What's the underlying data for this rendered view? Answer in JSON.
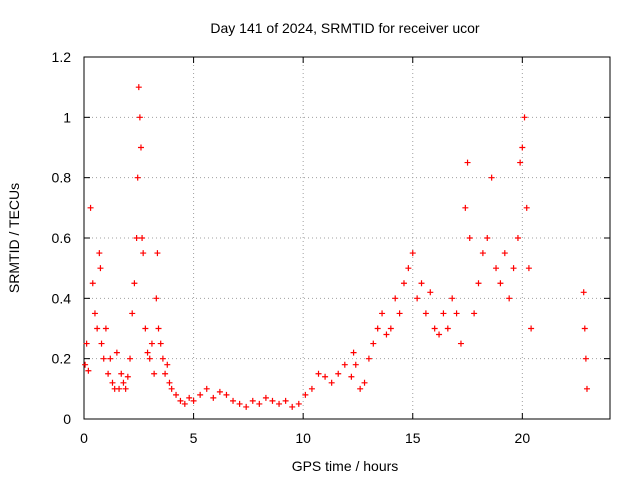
{
  "chart_data": {
    "type": "scatter",
    "title": "Day 141 of 2024, SRMTID for receiver ucor",
    "xlabel": "GPS time / hours",
    "ylabel": "SRMTID / TECUs",
    "xlim": [
      0,
      24
    ],
    "ylim": [
      0,
      1.2
    ],
    "x_ticks": [
      0,
      5,
      10,
      15,
      20
    ],
    "x_tick_labels": [
      "0",
      "5",
      "10",
      "15",
      "20"
    ],
    "y_ticks": [
      0,
      0.2,
      0.4,
      0.6,
      0.8,
      1,
      1.2
    ],
    "y_tick_labels": [
      "0",
      "0.2",
      "0.4",
      "0.6",
      "0.8",
      "1",
      "1.2"
    ],
    "grid": true,
    "marker": "plus",
    "color": "#ff0000",
    "series": [
      {
        "name": "ucor",
        "x": [
          0.05,
          0.12,
          0.2,
          0.3,
          0.4,
          0.5,
          0.6,
          0.7,
          0.75,
          0.8,
          0.9,
          1.0,
          1.1,
          1.2,
          1.3,
          1.4,
          1.5,
          1.6,
          1.7,
          1.8,
          1.9,
          2.0,
          2.1,
          2.2,
          2.3,
          2.4,
          2.45,
          2.5,
          2.55,
          2.6,
          2.65,
          2.7,
          2.8,
          2.9,
          3.0,
          3.1,
          3.2,
          3.3,
          3.35,
          3.4,
          3.5,
          3.6,
          3.7,
          3.8,
          3.9,
          4.0,
          4.2,
          4.4,
          4.6,
          4.8,
          5.0,
          5.3,
          5.6,
          5.9,
          6.2,
          6.5,
          6.8,
          7.1,
          7.4,
          7.7,
          8.0,
          8.3,
          8.6,
          8.9,
          9.2,
          9.5,
          9.8,
          10.1,
          10.4,
          10.7,
          11.0,
          11.3,
          11.6,
          11.9,
          12.2,
          12.3,
          12.4,
          12.6,
          12.8,
          13.0,
          13.2,
          13.4,
          13.6,
          13.8,
          14.0,
          14.2,
          14.4,
          14.6,
          14.8,
          15.0,
          15.2,
          15.4,
          15.6,
          15.8,
          16.0,
          16.2,
          16.4,
          16.6,
          16.8,
          17.0,
          17.2,
          17.4,
          17.5,
          17.6,
          17.8,
          18.0,
          18.2,
          18.4,
          18.6,
          18.8,
          19.0,
          19.2,
          19.4,
          19.6,
          19.8,
          19.9,
          20.0,
          20.1,
          20.2,
          20.3,
          20.4,
          22.8,
          22.85,
          22.9,
          22.95
        ],
        "y": [
          0.18,
          0.25,
          0.16,
          0.7,
          0.45,
          0.35,
          0.3,
          0.55,
          0.5,
          0.25,
          0.2,
          0.3,
          0.15,
          0.2,
          0.12,
          0.1,
          0.22,
          0.1,
          0.15,
          0.12,
          0.1,
          0.14,
          0.2,
          0.35,
          0.45,
          0.6,
          0.8,
          1.1,
          1.0,
          0.9,
          0.6,
          0.55,
          0.3,
          0.22,
          0.2,
          0.25,
          0.15,
          0.4,
          0.55,
          0.3,
          0.25,
          0.2,
          0.15,
          0.18,
          0.12,
          0.1,
          0.08,
          0.06,
          0.05,
          0.07,
          0.06,
          0.08,
          0.1,
          0.07,
          0.09,
          0.08,
          0.06,
          0.05,
          0.04,
          0.06,
          0.05,
          0.07,
          0.06,
          0.05,
          0.06,
          0.04,
          0.05,
          0.08,
          0.1,
          0.15,
          0.14,
          0.12,
          0.15,
          0.18,
          0.14,
          0.22,
          0.18,
          0.1,
          0.12,
          0.2,
          0.25,
          0.3,
          0.35,
          0.28,
          0.3,
          0.4,
          0.35,
          0.45,
          0.5,
          0.55,
          0.4,
          0.45,
          0.35,
          0.42,
          0.3,
          0.28,
          0.35,
          0.3,
          0.4,
          0.35,
          0.25,
          0.7,
          0.85,
          0.6,
          0.35,
          0.45,
          0.55,
          0.6,
          0.8,
          0.5,
          0.45,
          0.55,
          0.4,
          0.5,
          0.6,
          0.85,
          0.9,
          1.0,
          0.7,
          0.5,
          0.3,
          0.42,
          0.3,
          0.2,
          0.1
        ]
      }
    ]
  }
}
